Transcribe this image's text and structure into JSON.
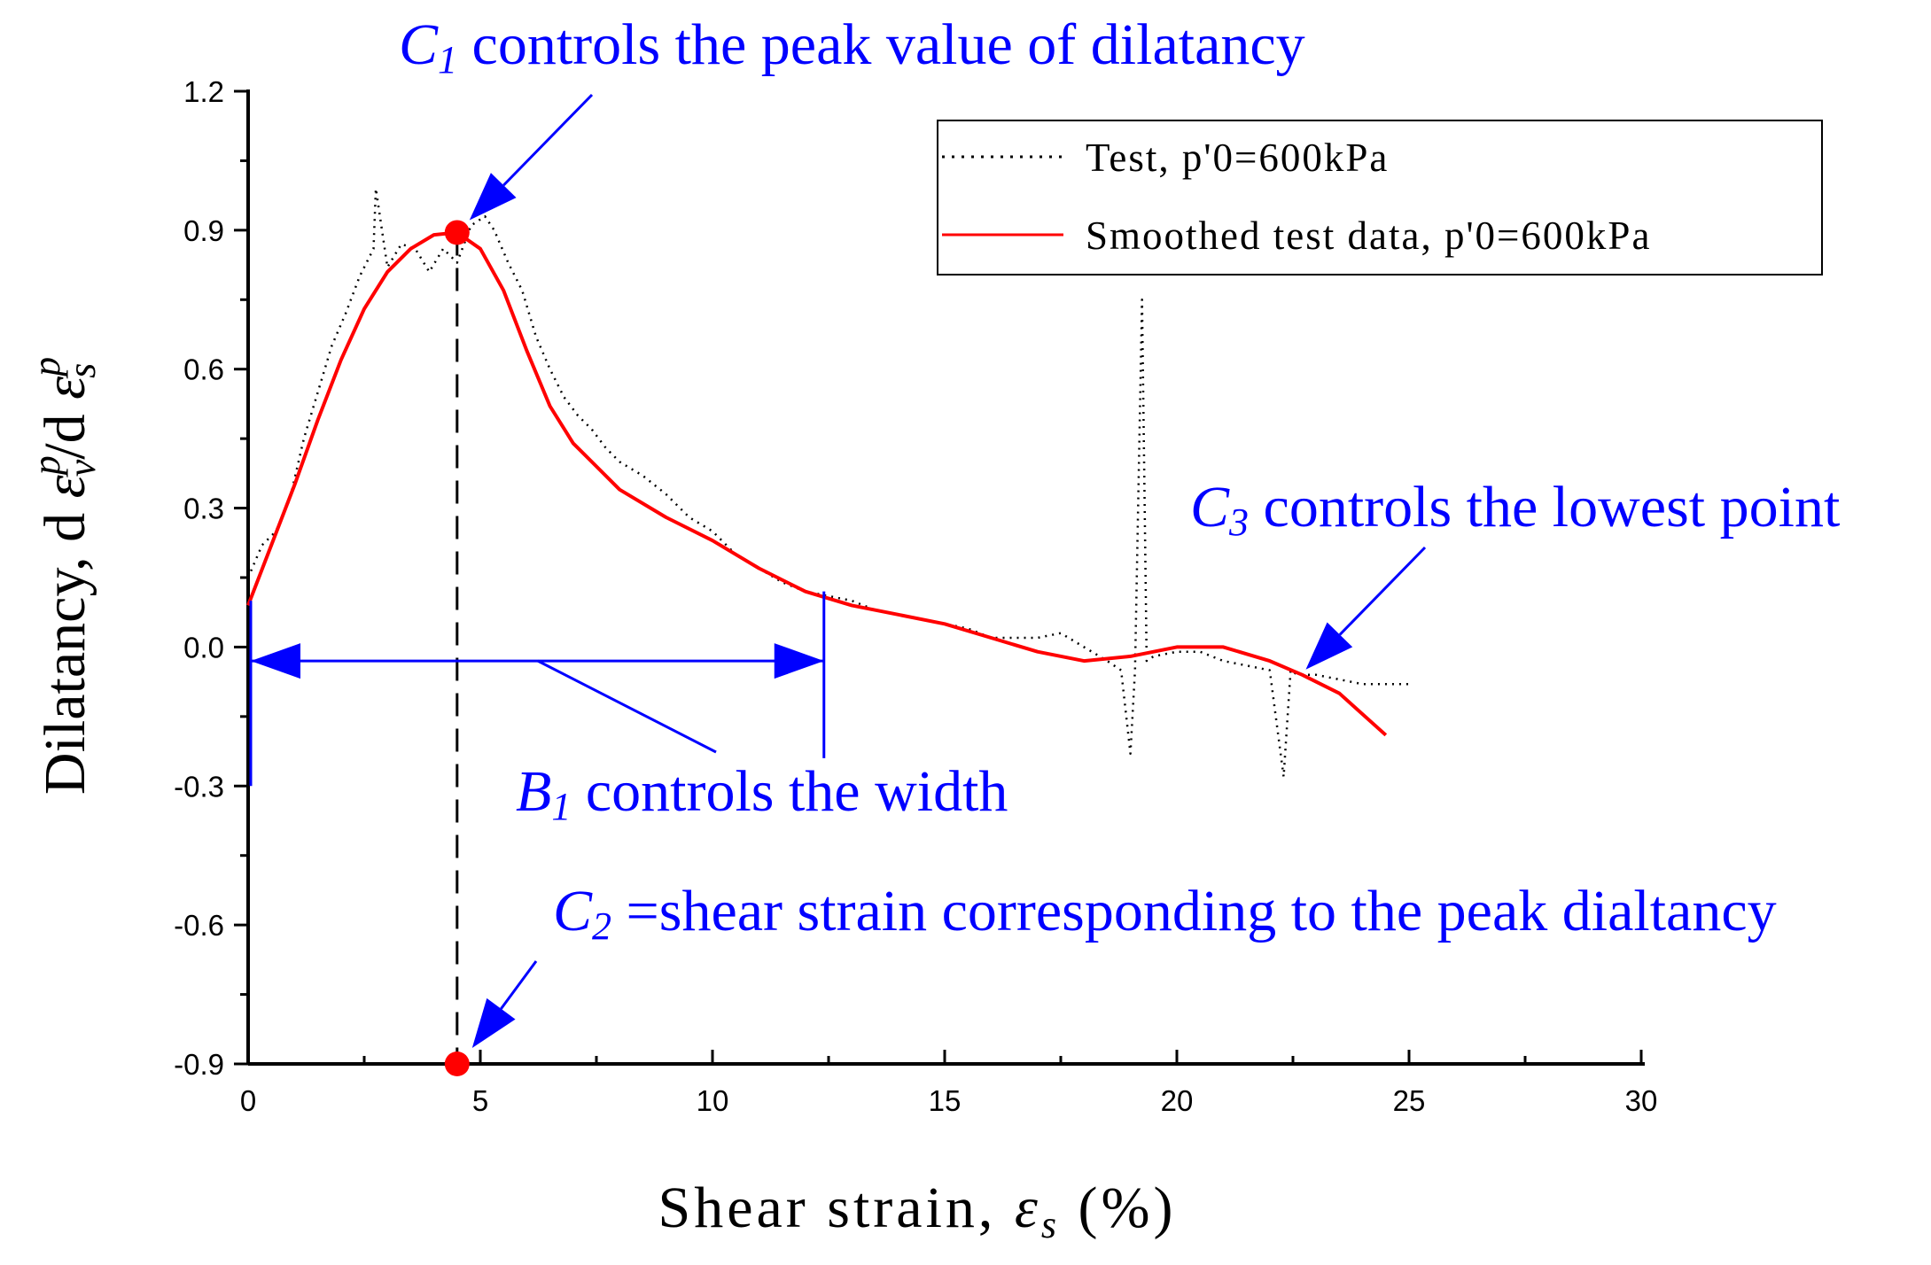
{
  "chart_data": {
    "type": "line",
    "xlabel": "Shear strain,  εs (%)",
    "ylabel": "Dilatancy, d εvp/d εsp",
    "xlim": [
      0,
      30
    ],
    "ylim": [
      -0.9,
      1.2
    ],
    "x_ticks": [
      "0",
      "5",
      "10",
      "15",
      "20",
      "25",
      "30"
    ],
    "y_ticks": [
      "1.2",
      "0.9",
      "0.6",
      "0.3",
      "0.0",
      "-0.3",
      "-0.6",
      "-0.9"
    ],
    "legend": {
      "position": "top-right",
      "test_label": "Test, p'0=600kPa",
      "smoothed_label": "Smoothed test data, p'0=600kPa"
    },
    "series": [
      {
        "name": "Test, p'0=600kPa",
        "style": "dotted",
        "color": "#000000",
        "x": [
          0.0,
          0.3,
          0.6,
          0.9,
          1.2,
          1.5,
          1.8,
          2.1,
          2.4,
          2.7,
          2.75,
          3.0,
          3.3,
          3.6,
          3.9,
          4.2,
          4.5,
          4.8,
          5.1,
          5.3,
          5.6,
          5.9,
          6.2,
          6.5,
          6.8,
          7.1,
          7.4,
          7.7,
          8.0,
          8.5,
          9.0,
          9.5,
          10.0,
          10.5,
          11.0,
          11.5,
          12.0,
          12.5,
          13.0,
          13.5,
          14.0,
          14.5,
          15.0,
          15.5,
          16.0,
          16.5,
          17.0,
          17.5,
          18.0,
          18.5,
          18.8,
          19.0,
          19.1,
          19.25,
          19.35,
          19.5,
          20.0,
          20.5,
          21.0,
          21.5,
          22.0,
          22.3,
          22.45,
          22.6,
          23.0,
          23.5,
          24.0,
          24.5,
          25.0
        ],
        "y": [
          0.15,
          0.22,
          0.25,
          0.32,
          0.45,
          0.55,
          0.65,
          0.72,
          0.8,
          0.86,
          0.99,
          0.82,
          0.87,
          0.86,
          0.81,
          0.86,
          0.83,
          0.91,
          0.93,
          0.9,
          0.83,
          0.77,
          0.67,
          0.6,
          0.54,
          0.5,
          0.47,
          0.43,
          0.4,
          0.37,
          0.33,
          0.28,
          0.25,
          0.2,
          0.17,
          0.14,
          0.12,
          0.11,
          0.1,
          0.08,
          0.07,
          0.06,
          0.05,
          0.04,
          0.02,
          0.02,
          0.02,
          0.03,
          0.0,
          -0.03,
          -0.05,
          -0.23,
          -0.05,
          0.75,
          -0.03,
          -0.02,
          -0.01,
          -0.01,
          -0.03,
          -0.04,
          -0.05,
          -0.28,
          -0.05,
          -0.06,
          -0.06,
          -0.07,
          -0.08,
          -0.08,
          -0.08
        ]
      },
      {
        "name": "Smoothed test data, p'0=600kPa",
        "style": "solid",
        "color": "#ff0000",
        "x": [
          0.0,
          0.5,
          1.0,
          1.5,
          2.0,
          2.5,
          3.0,
          3.5,
          4.0,
          4.5,
          5.0,
          5.5,
          6.0,
          6.5,
          7.0,
          7.5,
          8.0,
          9.0,
          10.0,
          11.0,
          12.0,
          13.0,
          14.0,
          15.0,
          16.0,
          17.0,
          18.0,
          19.0,
          20.0,
          21.0,
          22.0,
          22.7,
          23.5,
          24.5
        ],
        "y": [
          0.09,
          0.22,
          0.35,
          0.49,
          0.62,
          0.73,
          0.81,
          0.86,
          0.89,
          0.895,
          0.86,
          0.77,
          0.64,
          0.52,
          0.44,
          0.39,
          0.34,
          0.28,
          0.23,
          0.17,
          0.12,
          0.09,
          0.07,
          0.05,
          0.02,
          -0.01,
          -0.03,
          -0.02,
          0.0,
          0.0,
          -0.03,
          -0.06,
          -0.1,
          -0.19
        ]
      }
    ],
    "annotations": {
      "c1_sym": "C",
      "c1_sub": "1",
      "c1_text": " controls the peak value of dilatancy",
      "c2_sym": "C",
      "c2_sub": "2",
      "c2_text": " =shear strain corresponding to the peak dialtancy",
      "c3_sym": "C",
      "c3_sub": "3",
      "c3_text": " controls the lowest point",
      "b1_sym": "B",
      "b1_sub": "1",
      "b1_text": " controls the width"
    },
    "markers": {
      "peak_x": 4.5,
      "peak_y": 0.895,
      "width_start_x": 0.0,
      "width_end_x": 12.4,
      "c3_x": 22.7,
      "c3_y": -0.06
    },
    "colors": {
      "annotation": "#0000ff",
      "marker": "#ff0000",
      "smooth": "#ff0000",
      "test": "#000000"
    }
  }
}
